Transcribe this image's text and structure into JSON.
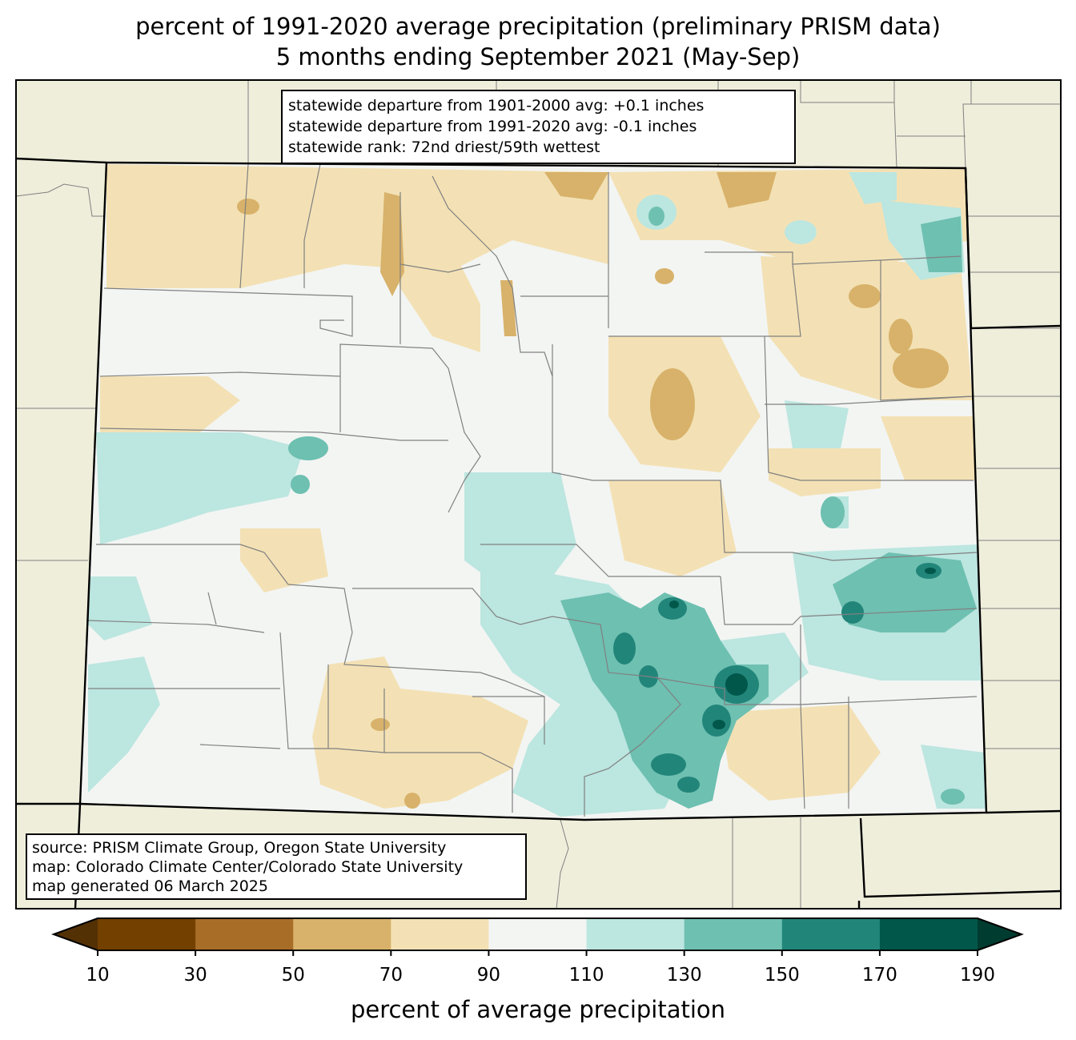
{
  "title": {
    "line1": "percent of 1991-2020 average precipitation (preliminary PRISM data)",
    "line2": "5 months ending September 2021 (May-Sep)"
  },
  "stats": {
    "line1": "statewide departure from 1901-2000 avg: +0.1 inches",
    "line2": "statewide departure from 1991-2020 avg: -0.1 inches",
    "line3": "statewide rank: 72nd driest/59th wettest"
  },
  "source": {
    "line1": "source: PRISM Climate Group, Oregon State University",
    "line2": "map: Colorado Climate Center/Colorado State University",
    "line3": "map generated 06 March 2025"
  },
  "colorbar": {
    "title": "percent of average precipitation",
    "ticks": [
      "10",
      "30",
      "50",
      "70",
      "90",
      "110",
      "130",
      "150",
      "170",
      "190"
    ],
    "bins": [
      {
        "range": "10-30",
        "color": "#734000"
      },
      {
        "range": "30-50",
        "color": "#a86e28"
      },
      {
        "range": "50-70",
        "color": "#d8b26a"
      },
      {
        "range": "70-90",
        "color": "#f3e1b5"
      },
      {
        "range": "90-110",
        "color": "#f3f5f3"
      },
      {
        "range": "110-130",
        "color": "#bce6e0"
      },
      {
        "range": "130-150",
        "color": "#6ec0b1"
      },
      {
        "range": "150-170",
        "color": "#22857a"
      },
      {
        "range": "170-190",
        "color": "#00574a"
      }
    ],
    "under_color": "#543005",
    "over_color": "#003c30"
  },
  "colors": {
    "land": "#efeedb",
    "state_border": "#000000",
    "county_border": "#808080"
  }
}
